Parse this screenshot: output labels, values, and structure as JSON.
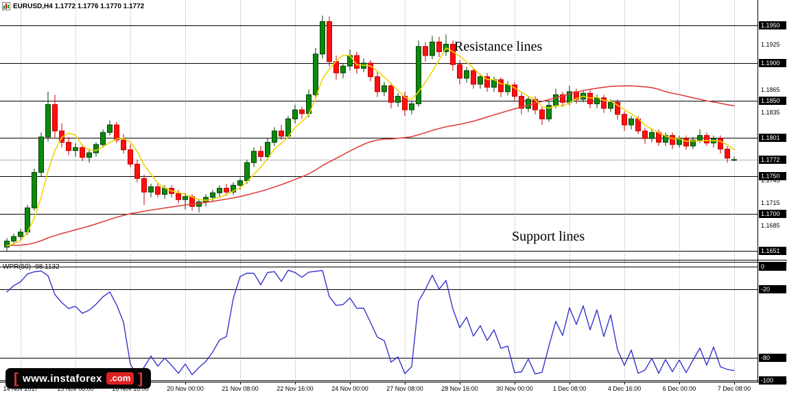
{
  "window": {
    "title": "EURUSD,H4 1.1772 1.1776 1.1770 1.1772"
  },
  "annotations": {
    "resistance": "Resistance lines",
    "support": "Support lines"
  },
  "watermark": {
    "open_bracket": "[",
    "domain": "www.instaforex",
    "tld": ".com",
    "close_bracket": "]"
  },
  "colors": {
    "bull": "#0c8a0c",
    "bull_border": "#063f06",
    "bear": "#ff0f0f",
    "bear_border": "#c00000",
    "ma_fast": "#eed500",
    "ma_slow": "#e04040",
    "wpr": "#3333cc",
    "grid": "#9a9a9a",
    "level": "#000000",
    "badge_bg": "#000000",
    "badge_fg": "#ffffff",
    "price_line": "#b4b4b4"
  },
  "chart_data": {
    "type": "candlestick",
    "symbol": "EURUSD",
    "timeframe": "H4",
    "title": "EURUSD,H4 1.1772 1.1776 1.1770 1.1772",
    "ohlc_display": {
      "open": "1.1772",
      "high": "1.1776",
      "low": "1.1770",
      "close": "1.1772"
    },
    "ylim": [
      1.164,
      1.1984
    ],
    "grid": "vertical-dashed",
    "legend_position": "none",
    "current_price": 1.1772,
    "sr_levels": [
      1.195,
      1.19,
      1.185,
      1.1801,
      1.175,
      1.17,
      1.1651
    ],
    "y_axis": [
      {
        "text": "1.1950",
        "badge": true
      },
      {
        "text": "1.1925",
        "badge": false
      },
      {
        "text": "1.1900",
        "badge": true
      },
      {
        "text": "1.1865",
        "badge": false
      },
      {
        "text": "1.1850",
        "badge": true
      },
      {
        "text": "1.1835",
        "badge": false
      },
      {
        "text": "1.1801",
        "badge": true
      },
      {
        "text": "1.1772",
        "badge": true
      },
      {
        "text": "1.1750",
        "badge": true
      },
      {
        "text": "1.1745",
        "badge": false
      },
      {
        "text": "1.1715",
        "badge": false
      },
      {
        "text": "1.1700",
        "badge": true
      },
      {
        "text": "1.1685",
        "badge": false
      },
      {
        "text": "1.1651",
        "badge": true
      }
    ],
    "x_tick_labels": [
      "14 Nov 2017",
      "15 Nov 08:00",
      "16 Nov 16:00",
      "20 Nov 00:00",
      "21 Nov 08:00",
      "22 Nov 16:00",
      "24 Nov 00:00",
      "27 Nov 08:00",
      "28 Nov 16:00",
      "30 Nov 00:00",
      "1 Dec 08:00",
      "4 Dec 16:00",
      "6 Dec 00:00",
      "7 Dec 08:00"
    ],
    "moving_averages": [
      {
        "name": "fast-ma",
        "color": "#eed500"
      },
      {
        "name": "slow-ma",
        "color": "#e04040"
      }
    ],
    "candles": [
      [
        1.1656,
        1.1668,
        1.165,
        1.1664
      ],
      [
        1.1664,
        1.1674,
        1.1658,
        1.167
      ],
      [
        1.167,
        1.168,
        1.1664,
        1.1676
      ],
      [
        1.1676,
        1.1712,
        1.1672,
        1.1708
      ],
      [
        1.1708,
        1.176,
        1.1704,
        1.1755
      ],
      [
        1.1755,
        1.1808,
        1.175,
        1.1802
      ],
      [
        1.1802,
        1.1862,
        1.1796,
        1.1845
      ],
      [
        1.1845,
        1.1858,
        1.18,
        1.181
      ],
      [
        1.181,
        1.182,
        1.1788,
        1.1795
      ],
      [
        1.1795,
        1.1802,
        1.1778,
        1.1784
      ],
      [
        1.1784,
        1.1794,
        1.1776,
        1.1788
      ],
      [
        1.1788,
        1.1792,
        1.177,
        1.1775
      ],
      [
        1.1775,
        1.1786,
        1.1768,
        1.1781
      ],
      [
        1.1781,
        1.1795,
        1.1776,
        1.1792
      ],
      [
        1.1792,
        1.1812,
        1.1788,
        1.1808
      ],
      [
        1.1808,
        1.1824,
        1.1804,
        1.1818
      ],
      [
        1.1818,
        1.1822,
        1.1794,
        1.1798
      ],
      [
        1.1798,
        1.1806,
        1.178,
        1.1785
      ],
      [
        1.1785,
        1.1792,
        1.1762,
        1.1766
      ],
      [
        1.1766,
        1.1772,
        1.1742,
        1.1747
      ],
      [
        1.1747,
        1.1752,
        1.1712,
        1.1729
      ],
      [
        1.1729,
        1.174,
        1.1722,
        1.1736
      ],
      [
        1.1736,
        1.1742,
        1.1722,
        1.1726
      ],
      [
        1.1726,
        1.1738,
        1.172,
        1.1734
      ],
      [
        1.1734,
        1.1738,
        1.1722,
        1.1727
      ],
      [
        1.1727,
        1.1732,
        1.1714,
        1.1719
      ],
      [
        1.1719,
        1.1728,
        1.1706,
        1.1723
      ],
      [
        1.1723,
        1.1726,
        1.1704,
        1.171
      ],
      [
        1.171,
        1.172,
        1.1702,
        1.1716
      ],
      [
        1.1716,
        1.1726,
        1.171,
        1.1722
      ],
      [
        1.1722,
        1.1732,
        1.1716,
        1.1728
      ],
      [
        1.1728,
        1.1738,
        1.1722,
        1.1734
      ],
      [
        1.1734,
        1.174,
        1.1724,
        1.1729
      ],
      [
        1.1729,
        1.1742,
        1.1725,
        1.1738
      ],
      [
        1.1738,
        1.1748,
        1.1732,
        1.1744
      ],
      [
        1.1744,
        1.1772,
        1.174,
        1.1768
      ],
      [
        1.1768,
        1.1788,
        1.1762,
        1.1783
      ],
      [
        1.1783,
        1.179,
        1.177,
        1.1776
      ],
      [
        1.1776,
        1.18,
        1.1772,
        1.1795
      ],
      [
        1.1795,
        1.1815,
        1.179,
        1.181
      ],
      [
        1.181,
        1.1818,
        1.1798,
        1.1803
      ],
      [
        1.1803,
        1.183,
        1.18,
        1.1826
      ],
      [
        1.1826,
        1.1845,
        1.182,
        1.1838
      ],
      [
        1.1838,
        1.1842,
        1.1826,
        1.1833
      ],
      [
        1.1833,
        1.1865,
        1.1828,
        1.1858
      ],
      [
        1.1858,
        1.192,
        1.1854,
        1.1912
      ],
      [
        1.1912,
        1.1963,
        1.1906,
        1.1955
      ],
      [
        1.1955,
        1.1962,
        1.1896,
        1.1902
      ],
      [
        1.1902,
        1.191,
        1.1878,
        1.1887
      ],
      [
        1.1887,
        1.19,
        1.188,
        1.1896
      ],
      [
        1.1896,
        1.1918,
        1.189,
        1.191
      ],
      [
        1.191,
        1.1915,
        1.1886,
        1.1893
      ],
      [
        1.1893,
        1.1906,
        1.1888,
        1.19
      ],
      [
        1.19,
        1.1904,
        1.1876,
        1.1882
      ],
      [
        1.1882,
        1.1888,
        1.1855,
        1.1862
      ],
      [
        1.1862,
        1.1875,
        1.1856,
        1.187
      ],
      [
        1.187,
        1.1874,
        1.184,
        1.1848
      ],
      [
        1.1848,
        1.186,
        1.1842,
        1.1856
      ],
      [
        1.1856,
        1.1862,
        1.183,
        1.1838
      ],
      [
        1.1838,
        1.185,
        1.1832,
        1.1846
      ],
      [
        1.1846,
        1.193,
        1.1842,
        1.1922
      ],
      [
        1.1922,
        1.1928,
        1.1902,
        1.191
      ],
      [
        1.191,
        1.1936,
        1.1905,
        1.1928
      ],
      [
        1.1928,
        1.1935,
        1.1908,
        1.1915
      ],
      [
        1.1915,
        1.1938,
        1.191,
        1.1925
      ],
      [
        1.1925,
        1.193,
        1.189,
        1.1898
      ],
      [
        1.1898,
        1.1904,
        1.1872,
        1.188
      ],
      [
        1.188,
        1.1895,
        1.1874,
        1.189
      ],
      [
        1.189,
        1.1894,
        1.1866,
        1.1872
      ],
      [
        1.1872,
        1.1886,
        1.1866,
        1.1882
      ],
      [
        1.1882,
        1.1887,
        1.1862,
        1.1868
      ],
      [
        1.1868,
        1.1882,
        1.1862,
        1.1878
      ],
      [
        1.1878,
        1.1881,
        1.1855,
        1.1862
      ],
      [
        1.1862,
        1.1876,
        1.1857,
        1.1871
      ],
      [
        1.1871,
        1.1875,
        1.185,
        1.1856
      ],
      [
        1.1856,
        1.186,
        1.1832,
        1.184
      ],
      [
        1.184,
        1.1856,
        1.1835,
        1.1852
      ],
      [
        1.1852,
        1.1856,
        1.1832,
        1.1838
      ],
      [
        1.1838,
        1.1842,
        1.1818,
        1.1826
      ],
      [
        1.1826,
        1.185,
        1.1822,
        1.1844
      ],
      [
        1.1844,
        1.1866,
        1.184,
        1.1858
      ],
      [
        1.1858,
        1.1862,
        1.1842,
        1.1848
      ],
      [
        1.1848,
        1.187,
        1.1844,
        1.1862
      ],
      [
        1.1862,
        1.1866,
        1.1846,
        1.1852
      ],
      [
        1.1852,
        1.1864,
        1.1848,
        1.186
      ],
      [
        1.186,
        1.1864,
        1.184,
        1.1846
      ],
      [
        1.1846,
        1.1858,
        1.184,
        1.1854
      ],
      [
        1.1854,
        1.1858,
        1.1834,
        1.184
      ],
      [
        1.184,
        1.1852,
        1.1835,
        1.1848
      ],
      [
        1.1848,
        1.1852,
        1.1825,
        1.1832
      ],
      [
        1.1832,
        1.1836,
        1.181,
        1.1818
      ],
      [
        1.1818,
        1.183,
        1.1812,
        1.1826
      ],
      [
        1.1826,
        1.183,
        1.1806,
        1.181
      ],
      [
        1.181,
        1.1814,
        1.1793,
        1.18
      ],
      [
        1.18,
        1.1812,
        1.1795,
        1.1808
      ],
      [
        1.1808,
        1.1812,
        1.179,
        1.1795
      ],
      [
        1.1795,
        1.1808,
        1.179,
        1.1804
      ],
      [
        1.1804,
        1.1808,
        1.1786,
        1.1792
      ],
      [
        1.1792,
        1.1804,
        1.1788,
        1.18
      ],
      [
        1.18,
        1.1804,
        1.1785,
        1.179
      ],
      [
        1.179,
        1.1802,
        1.1786,
        1.1798
      ],
      [
        1.1798,
        1.1812,
        1.1794,
        1.1804
      ],
      [
        1.1804,
        1.1808,
        1.179,
        1.1794
      ],
      [
        1.1794,
        1.1804,
        1.1788,
        1.18
      ],
      [
        1.18,
        1.1804,
        1.178,
        1.1786
      ],
      [
        1.1786,
        1.179,
        1.1768,
        1.1774
      ],
      [
        1.1772,
        1.1776,
        1.177,
        1.1772
      ]
    ],
    "indicator_pane": {
      "name": "williams-percent-range",
      "label": "WPR(50) -98.1132",
      "value": -98.1132,
      "type": "line",
      "color": "#3333cc",
      "range": [
        0,
        -100
      ],
      "levels": [
        0,
        -20,
        -80,
        -100
      ],
      "y_axis": [
        {
          "text": "0",
          "value": 0
        },
        {
          "text": "-20",
          "value": -20
        },
        {
          "text": "-80",
          "value": -80
        },
        {
          "text": "-100",
          "value": -100
        }
      ]
    }
  }
}
